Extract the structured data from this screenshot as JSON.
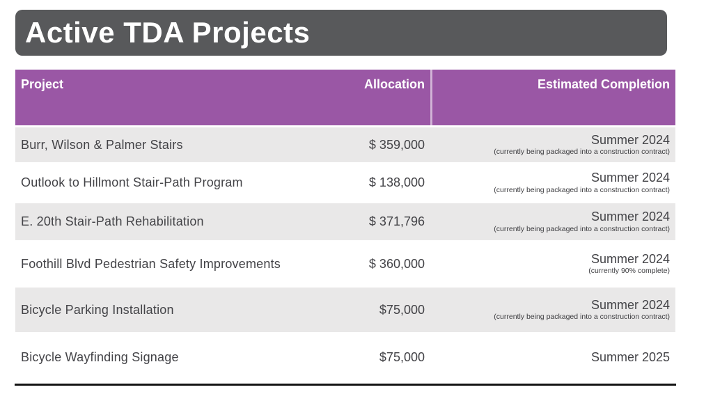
{
  "slide": {
    "title": "Active TDA Projects"
  },
  "table": {
    "headers": {
      "project": "Project",
      "allocation": "Allocation",
      "completion": "Estimated Completion"
    },
    "rows": [
      {
        "project": "Burr, Wilson & Palmer Stairs",
        "allocation": "$ 359,000",
        "completion": "Summer 2024",
        "completion_note": "(currently being packaged into a construction contract)"
      },
      {
        "project": "Outlook to Hillmont Stair-Path Program",
        "allocation": "$ 138,000",
        "completion": "Summer 2024",
        "completion_note": "(currently being packaged into a construction contract)"
      },
      {
        "project": "E. 20th Stair-Path Rehabilitation",
        "allocation": "$ 371,796",
        "completion": "Summer 2024",
        "completion_note": "(currently being packaged into a construction contract)"
      },
      {
        "project": "Foothill Blvd Pedestrian Safety Improvements",
        "allocation": "$ 360,000",
        "completion": "Summer 2024",
        "completion_note": "(currently 90% complete)"
      },
      {
        "project": "Bicycle Parking Installation",
        "allocation": "$75,000",
        "completion": "Summer 2024",
        "completion_note": "(currently being packaged into a construction contract)"
      },
      {
        "project": "Bicycle Wayfinding Signage",
        "allocation": "$75,000",
        "completion": "Summer 2025",
        "completion_note": ""
      }
    ]
  },
  "colors": {
    "title_bar_bg": "#58595B",
    "title_text": "#FFFFFF",
    "table_header_bg": "#9A57A5",
    "table_header_text": "#FFFFFF",
    "alt_row_bg": "#E9E8E8",
    "body_text": "#434347",
    "bottom_rule": "#141414"
  }
}
